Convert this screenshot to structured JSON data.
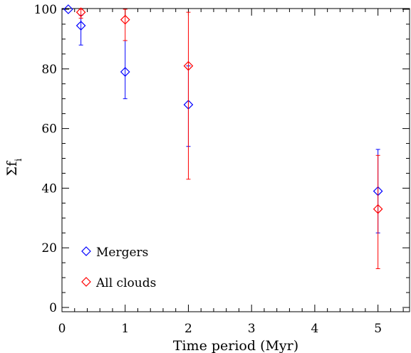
{
  "chart_data": {
    "type": "scatter",
    "title": "",
    "xlabel": "Time period (Myr)",
    "ylabel": "Σf",
    "ylabel_subscript": "i",
    "xlim": [
      0,
      5.5
    ],
    "ylim": [
      0,
      100
    ],
    "x_ticks": [
      0,
      1,
      2,
      3,
      4,
      5
    ],
    "y_ticks": [
      0,
      20,
      40,
      60,
      80,
      100
    ],
    "x_minor_step": 0.2,
    "y_minor_step": 5,
    "grid": false,
    "legend_position": "bottom-left",
    "series": [
      {
        "name": "Mergers",
        "color": "#0000ff",
        "marker": "diamond",
        "points": [
          {
            "x": 0.1,
            "y": 100,
            "err_low": 0,
            "err_high": 0
          },
          {
            "x": 0.3,
            "y": 94.5,
            "err_low": 6.5,
            "err_high": 3.5
          },
          {
            "x": 1,
            "y": 79,
            "err_low": 9,
            "err_high": 10.5
          },
          {
            "x": 2,
            "y": 68,
            "err_low": 14,
            "err_high": 13
          },
          {
            "x": 5,
            "y": 39,
            "err_low": 14,
            "err_high": 14
          }
        ]
      },
      {
        "name": "All clouds",
        "color": "#ff0000",
        "marker": "diamond",
        "points": [
          {
            "x": 0.3,
            "y": 99,
            "err_low": 2,
            "err_high": 1
          },
          {
            "x": 1,
            "y": 96.5,
            "err_low": 7,
            "err_high": 3.5
          },
          {
            "x": 2,
            "y": 81,
            "err_low": 38,
            "err_high": 18
          },
          {
            "x": 5,
            "y": 33,
            "err_low": 20,
            "err_high": 18
          }
        ]
      }
    ]
  }
}
